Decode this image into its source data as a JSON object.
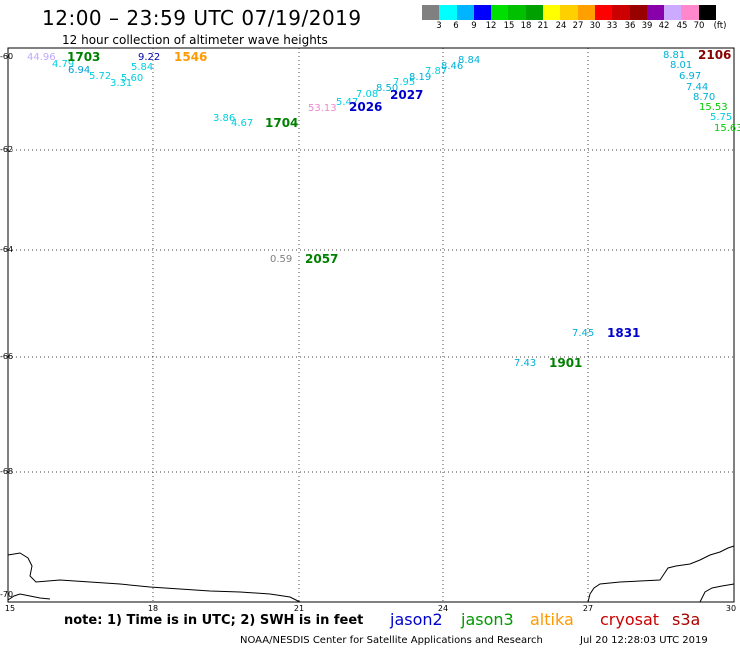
{
  "title": "12:00 – 23:59 UTC 07/19/2019",
  "subtitle": "12 hour collection of altimeter wave heights",
  "legend": {
    "colors": [
      "#808080",
      "#00ffff",
      "#00b4ff",
      "#0000ff",
      "#00e000",
      "#00c000",
      "#00a000",
      "#ffff00",
      "#ffd000",
      "#ffa000",
      "#ff0000",
      "#cc0000",
      "#990000",
      "#8800aa",
      "#ccaaff",
      "#ff88cc",
      "#000000"
    ],
    "labels": [
      "3",
      "6",
      "9",
      "12",
      "15",
      "18",
      "21",
      "24",
      "27",
      "30",
      "33",
      "36",
      "39",
      "42",
      "45",
      "70",
      "(ft)"
    ]
  },
  "axes": {
    "lat_labels": [
      "-60",
      "-62",
      "-64",
      "-66",
      "-68",
      "-70"
    ],
    "lon_labels": [
      "15",
      "18",
      "21",
      "24",
      "27",
      "30"
    ]
  },
  "swh_values": [
    {
      "text": "44.96",
      "color": "#c0a8ff"
    },
    {
      "text": "4.79",
      "color": "#00d0e0"
    },
    {
      "text": "6.94",
      "color": "#00a0d8"
    },
    {
      "text": "5.72",
      "color": "#00d0e0"
    },
    {
      "text": "3.31",
      "color": "#00d0e0"
    },
    {
      "text": "5.60",
      "color": "#00d0e0"
    },
    {
      "text": "5.84",
      "color": "#00d0e0"
    },
    {
      "text": "9.22",
      "color": "#0000b0"
    },
    {
      "text": "7.08",
      "color": "#00d0e0"
    },
    {
      "text": "5.47",
      "color": "#00d0e0"
    },
    {
      "text": "8.50",
      "color": "#00b0d8"
    },
    {
      "text": "7.95",
      "color": "#00d0e0"
    },
    {
      "text": "8.19",
      "color": "#00b0d8"
    },
    {
      "text": "7.87",
      "color": "#00d0e0"
    },
    {
      "text": "8.46",
      "color": "#00b0d8"
    },
    {
      "text": "8.84",
      "color": "#00b0d8"
    },
    {
      "text": "53.13",
      "color": "#ee88cc"
    },
    {
      "text": "3.86",
      "color": "#00d0e0"
    },
    {
      "text": "4.67",
      "color": "#00d0e0"
    },
    {
      "text": "0.59",
      "color": "#808080"
    },
    {
      "text": "8.81",
      "color": "#00b0d8"
    },
    {
      "text": "8.01",
      "color": "#00b0d8"
    },
    {
      "text": "6.97",
      "color": "#00b0d8"
    },
    {
      "text": "7.44",
      "color": "#00b0d8"
    },
    {
      "text": "8.70",
      "color": "#00b0d8"
    },
    {
      "text": "15.53",
      "color": "#00cc00"
    },
    {
      "text": "5.75",
      "color": "#00d0e0"
    },
    {
      "text": "15.63",
      "color": "#00cc00"
    },
    {
      "text": "7.45",
      "color": "#00b0d8"
    },
    {
      "text": "7.43",
      "color": "#00b0d8"
    }
  ],
  "pass_times": [
    {
      "text": "1703",
      "color": "#008000"
    },
    {
      "text": "1546",
      "color": "#ff9900"
    },
    {
      "text": "2026",
      "color": "#0000cc"
    },
    {
      "text": "2027",
      "color": "#0000cc"
    },
    {
      "text": "1704",
      "color": "#008000"
    },
    {
      "text": "2057",
      "color": "#008000"
    },
    {
      "text": "2106",
      "color": "#880000"
    },
    {
      "text": "1831",
      "color": "#0000cc"
    },
    {
      "text": "1901",
      "color": "#008000"
    }
  ],
  "note": "note:  1) Time is in UTC;  2) SWH is in feet",
  "satellites": [
    {
      "name": "jason2",
      "color": "#0000cc"
    },
    {
      "name": "jason3",
      "color": "#009900"
    },
    {
      "name": "altika",
      "color": "#ff9900"
    },
    {
      "name": "cryosat",
      "color": "#cc0000"
    },
    {
      "name": "s3a",
      "color": "#aa0000"
    }
  ],
  "credit": "NOAA/NESDIS Center for Satellite Applications and Research",
  "timestamp": "Jul 20 12:28:03 UTC 2019"
}
